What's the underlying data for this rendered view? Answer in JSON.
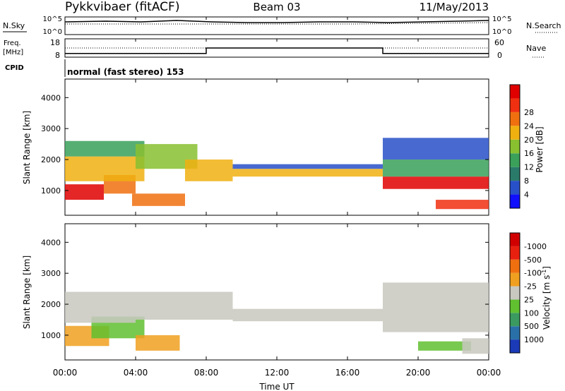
{
  "header": {
    "station": "Pykkvibaer (fitACF)",
    "beam": "Beam 03",
    "date": "11/May/2013"
  },
  "strips": {
    "nsky_label": "N.Sky",
    "nsky_ticks": [
      "10^5",
      "10^0"
    ],
    "nsearch_label": "N.Search",
    "nsearch_ticks": [
      "10^5",
      "10^0"
    ],
    "freq_label_line1": "Freq.",
    "freq_label_line2": "[MHz]",
    "freq_ticks": [
      "18",
      "8"
    ],
    "nave_label": "Nave",
    "nave_ticks": [
      "60",
      "0"
    ],
    "cpid_label": "CPID",
    "cpid_text": "normal (fast stereo) 153"
  },
  "axes": {
    "ylabel": "Slant Range [km]",
    "xlabel": "Time UT",
    "x_ticks": [
      "00:00",
      "04:00",
      "08:00",
      "12:00",
      "16:00",
      "20:00",
      "00:00"
    ],
    "y_ticks": [
      "1000",
      "2000",
      "3000",
      "4000"
    ]
  },
  "power_colorbar": {
    "label": "Power [dB]",
    "ticks": [
      "4",
      "8",
      "12",
      "16",
      "20",
      "24",
      "28"
    ],
    "colors": [
      "#1010ff",
      "#2850c8",
      "#2a7a6a",
      "#3aa05a",
      "#88c030",
      "#f0b010",
      "#f07010",
      "#f03010",
      "#e00000"
    ]
  },
  "velocity_colorbar": {
    "label": "Velocity [m s",
    "label_sup": "-1",
    "ticks": [
      "1000",
      "500",
      "100",
      "25",
      "-25",
      "-100",
      "-500",
      "-1000"
    ],
    "colors": [
      "#1a3ab8",
      "#2a70a8",
      "#3a9a60",
      "#60c030",
      "#c8c8c0",
      "#f0a020",
      "#f07010",
      "#e82010",
      "#d00000"
    ]
  },
  "chart_data": {
    "type": "heatmap",
    "x_range_hours": [
      0,
      24
    ],
    "y_range_km": [
      200,
      4600
    ],
    "freq_mhz_segments": [
      {
        "t0": 0,
        "t1": 8,
        "value": 10
      },
      {
        "t0": 8,
        "t1": 18,
        "value": 13
      },
      {
        "t0": 18,
        "t1": 24,
        "value": 10
      }
    ],
    "power_bands": [
      {
        "t0": 0.0,
        "t1": 2.2,
        "r0": 700,
        "r1": 1200,
        "color_index": 8
      },
      {
        "t0": 2.2,
        "t1": 4.0,
        "r0": 900,
        "r1": 1500,
        "color_index": 6
      },
      {
        "t0": 0.0,
        "t1": 4.5,
        "r0": 1300,
        "r1": 2100,
        "color_index": 5
      },
      {
        "t0": 0.0,
        "t1": 4.5,
        "r0": 2100,
        "r1": 2600,
        "color_index": 3
      },
      {
        "t0": 3.8,
        "t1": 6.8,
        "r0": 500,
        "r1": 900,
        "color_index": 6
      },
      {
        "t0": 4.0,
        "t1": 7.5,
        "r0": 1700,
        "r1": 2500,
        "color_index": 4
      },
      {
        "t0": 6.8,
        "t1": 9.5,
        "r0": 1300,
        "r1": 2000,
        "color_index": 5
      },
      {
        "t0": 9.5,
        "t1": 18.0,
        "r0": 1450,
        "r1": 1700,
        "color_index": 5
      },
      {
        "t0": 9.5,
        "t1": 18.0,
        "r0": 1700,
        "r1": 1850,
        "color_index": 1
      },
      {
        "t0": 18.0,
        "t1": 24.0,
        "r0": 1050,
        "r1": 1450,
        "color_index": 8
      },
      {
        "t0": 18.0,
        "t1": 24.0,
        "r0": 1450,
        "r1": 2000,
        "color_index": 3
      },
      {
        "t0": 18.0,
        "t1": 24.0,
        "r0": 2000,
        "r1": 2700,
        "color_index": 1
      },
      {
        "t0": 21.0,
        "t1": 24.0,
        "r0": 400,
        "r1": 700,
        "color_index": 7
      }
    ],
    "velocity_bands": [
      {
        "t0": 0.0,
        "t1": 2.5,
        "r0": 650,
        "r1": 1300,
        "color_index": 5
      },
      {
        "t0": 1.5,
        "t1": 4.5,
        "r0": 900,
        "r1": 1600,
        "color_index": 3
      },
      {
        "t0": 0.0,
        "t1": 4.0,
        "r0": 1400,
        "r1": 2400,
        "color_index": 4
      },
      {
        "t0": 4.0,
        "t1": 6.5,
        "r0": 500,
        "r1": 1000,
        "color_index": 5
      },
      {
        "t0": 4.0,
        "t1": 9.5,
        "r0": 1500,
        "r1": 2400,
        "color_index": 4
      },
      {
        "t0": 9.5,
        "t1": 18.0,
        "r0": 1450,
        "r1": 1850,
        "color_index": 4
      },
      {
        "t0": 18.0,
        "t1": 24.0,
        "r0": 1100,
        "r1": 2700,
        "color_index": 4
      },
      {
        "t0": 20.0,
        "t1": 23.0,
        "r0": 500,
        "r1": 800,
        "color_index": 3
      },
      {
        "t0": 22.5,
        "t1": 24.0,
        "r0": 400,
        "r1": 900,
        "color_index": 4
      }
    ]
  }
}
